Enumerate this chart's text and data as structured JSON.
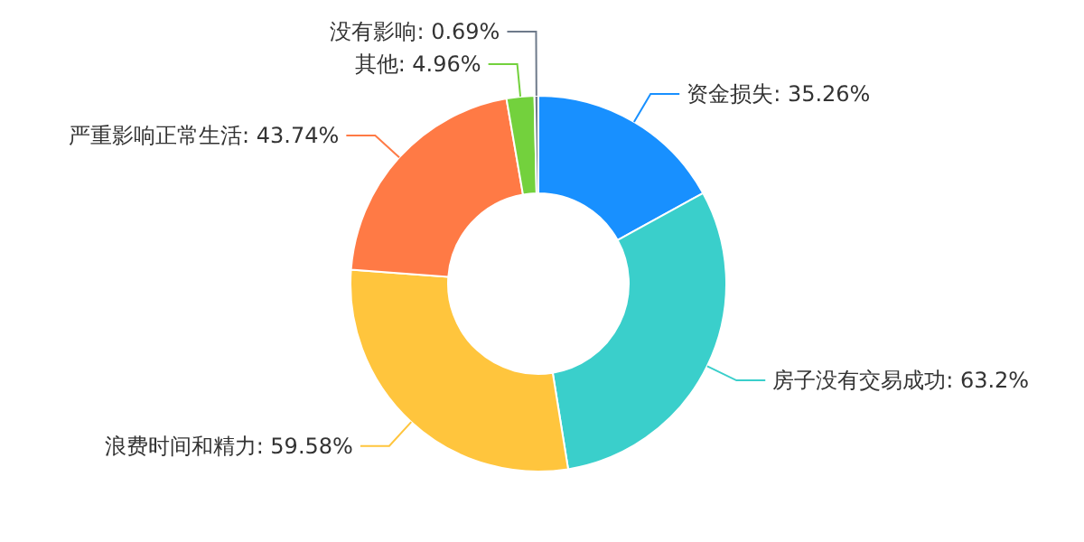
{
  "chart_data": {
    "type": "donut",
    "categories": [
      "资金损失",
      "房子没有交易成功",
      "浪费时间和精力",
      "严重影响正常生活",
      "其他",
      "没有影响"
    ],
    "values": [
      35.26,
      63.2,
      59.58,
      43.74,
      4.96,
      0.69
    ],
    "value_labels": [
      "35.26%",
      "63.2%",
      "59.58%",
      "43.74%",
      "4.96%",
      "0.69%"
    ],
    "colors": [
      "#1890ff",
      "#3acfcb",
      "#ffc53d",
      "#ff7a45",
      "#73d13d",
      "#6e7a8a"
    ]
  }
}
